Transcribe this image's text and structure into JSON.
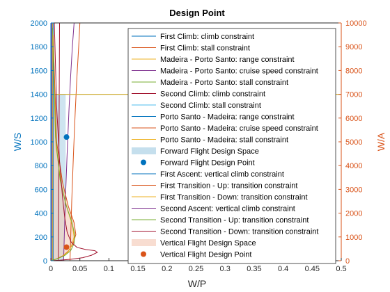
{
  "chart_data": {
    "type": "line",
    "title": "Design Point",
    "xlabel": "W/P",
    "ylabel_left": "W/S",
    "ylabel_right": "W/A",
    "xlim": [
      0,
      0.5
    ],
    "ylim_left": [
      0,
      2000
    ],
    "ylim_right": [
      0,
      10000
    ],
    "xticks": [
      "0",
      "0.05",
      "0.1",
      "0.15",
      "0.2",
      "0.25",
      "0.3",
      "0.35",
      "0.4",
      "0.45",
      "0.5"
    ],
    "yticks_left": [
      "0",
      "200",
      "400",
      "600",
      "800",
      "1000",
      "1200",
      "1400",
      "1600",
      "1800",
      "2000"
    ],
    "yticks_right": [
      "0",
      "1000",
      "2000",
      "3000",
      "4000",
      "5000",
      "6000",
      "7000",
      "8000",
      "9000",
      "10000"
    ],
    "left_axis_color": "#0072BD",
    "right_axis_color": "#D95319",
    "legend_position": "inside-right",
    "series": [
      {
        "name": "First Climb: climb constraint",
        "axis": "left",
        "color": "#0072BD",
        "kind": "line",
        "x": [
          0.0,
          0.0
        ],
        "y": [
          0,
          2000
        ]
      },
      {
        "name": "First Climb: stall constraint",
        "axis": "left",
        "color": "#D95319",
        "kind": "line",
        "x": [
          0,
          0.5
        ],
        "y": [
          1400,
          1400
        ]
      },
      {
        "name": "Madeira - Porto Santo: range constraint",
        "axis": "left",
        "color": "#EDB120",
        "kind": "line",
        "x": [
          0.003,
          0.003
        ],
        "y": [
          0,
          2000
        ]
      },
      {
        "name": "Madeira - Porto Santo: cruise speed constraint",
        "axis": "left",
        "color": "#7E2F8E",
        "kind": "line",
        "x": [
          0.022,
          0.025,
          0.028,
          0.031,
          0.034,
          0.037,
          0.04
        ],
        "y": [
          0,
          500,
          900,
          1250,
          1550,
          1800,
          2000
        ]
      },
      {
        "name": "Madeira - Porto Santo: stall constraint",
        "axis": "left",
        "color": "#77AC30",
        "kind": "line",
        "x": [
          0.0,
          0.5
        ],
        "y": [
          1400,
          1400
        ]
      },
      {
        "name": "Second Climb: climb constraint",
        "axis": "left",
        "color": "#A2142F",
        "kind": "line",
        "x": [
          0.013,
          0.014,
          0.015
        ],
        "y": [
          0,
          1000,
          2000
        ]
      },
      {
        "name": "Second Climb: stall constraint",
        "axis": "left",
        "color": "#4DBEEE",
        "kind": "line",
        "x": [
          0.0,
          0.5
        ],
        "y": [
          1400,
          1400
        ]
      },
      {
        "name": "Porto Santo - Madeira: range constraint",
        "axis": "left",
        "color": "#0072BD",
        "kind": "line",
        "x": [
          0.004,
          0.004
        ],
        "y": [
          0,
          2000
        ]
      },
      {
        "name": "Porto Santo - Madeira: cruise speed constraint",
        "axis": "left",
        "color": "#D95319",
        "kind": "line",
        "x": [
          0.033,
          0.036,
          0.039,
          0.042,
          0.045,
          0.048,
          0.05
        ],
        "y": [
          0,
          500,
          900,
          1250,
          1550,
          1800,
          2000
        ]
      },
      {
        "name": "Porto Santo - Madeira: stall constraint",
        "axis": "left",
        "color": "#EDB120",
        "kind": "line",
        "x": [
          0.0,
          0.5
        ],
        "y": [
          1400,
          1400
        ]
      },
      {
        "name": "Forward Flight Design Space",
        "axis": "left",
        "color": "#A6CEE3",
        "kind": "area",
        "x": [
          0.0,
          0.022,
          0.0255,
          0.0255,
          0.0
        ],
        "y": [
          0,
          0,
          500,
          1400,
          1400
        ]
      },
      {
        "name": "Forward Flight Design Point",
        "axis": "left",
        "color": "#0072BD",
        "kind": "point",
        "x": [
          0.027
        ],
        "y": [
          1040
        ]
      },
      {
        "name": "First Ascent: vertical climb constraint",
        "axis": "right",
        "color": "#0072BD",
        "kind": "line",
        "x": [
          0.001,
          0.0012,
          0.0014
        ],
        "y": [
          0,
          5000,
          10000
        ]
      },
      {
        "name": "First Transition - Up: transition constraint",
        "axis": "right",
        "color": "#D95319",
        "kind": "line",
        "x": [
          0.0,
          0.01,
          0.02,
          0.03,
          0.038,
          0.043,
          0.04,
          0.03,
          0.02,
          0.01,
          0.004
        ],
        "y": [
          0,
          80,
          200,
          400,
          700,
          1100,
          1600,
          2300,
          3300,
          5000,
          9500
        ]
      },
      {
        "name": "First Transition - Down: transition constraint",
        "axis": "right",
        "color": "#EDB120",
        "kind": "line",
        "x": [
          0.0,
          0.01,
          0.02,
          0.03,
          0.036,
          0.04,
          0.037,
          0.028,
          0.018,
          0.009,
          0.004
        ],
        "y": [
          0,
          70,
          180,
          380,
          650,
          1000,
          1500,
          2200,
          3200,
          4800,
          9000
        ]
      },
      {
        "name": "Second Ascent: vertical climb constraint",
        "axis": "right",
        "color": "#7E2F8E",
        "kind": "line",
        "x": [
          0.001,
          0.0013,
          0.0015
        ],
        "y": [
          0,
          5000,
          10000
        ]
      },
      {
        "name": "Second Transition - Up: transition constraint",
        "axis": "right",
        "color": "#77AC30",
        "kind": "line",
        "x": [
          0.0,
          0.012,
          0.024,
          0.034,
          0.04,
          0.041,
          0.036,
          0.026,
          0.016,
          0.008,
          0.003
        ],
        "y": [
          0,
          90,
          220,
          420,
          720,
          1100,
          1650,
          2350,
          3400,
          5200,
          9800
        ]
      },
      {
        "name": "Second Transition - Down: transition constraint",
        "axis": "right",
        "color": "#A2142F",
        "kind": "line",
        "x": [
          0.0,
          0.015,
          0.035,
          0.055,
          0.07,
          0.08,
          0.076,
          0.06,
          0.045,
          0.035,
          0.028,
          0.024,
          0.02,
          0.015,
          0.01,
          0.006
        ],
        "y": [
          0,
          20,
          60,
          130,
          230,
          350,
          420,
          470,
          560,
          780,
          1200,
          1800,
          2700,
          4200,
          6500,
          10000
        ]
      },
      {
        "name": "Vertical Flight Design Space",
        "axis": "right",
        "color": "#F4CBB8",
        "kind": "area",
        "x": [
          0.0,
          0.0,
          0.004,
          0.01,
          0.02,
          0.03,
          0.04,
          0.043,
          0.038,
          0.03,
          0.02,
          0.01,
          0.0
        ],
        "y": [
          0,
          10000,
          9500,
          5000,
          3300,
          2300,
          1600,
          1100,
          700,
          400,
          200,
          80,
          0
        ]
      },
      {
        "name": "Vertical Flight Design Point",
        "axis": "right",
        "color": "#D95319",
        "kind": "point",
        "x": [
          0.027
        ],
        "y": [
          570
        ]
      }
    ]
  }
}
